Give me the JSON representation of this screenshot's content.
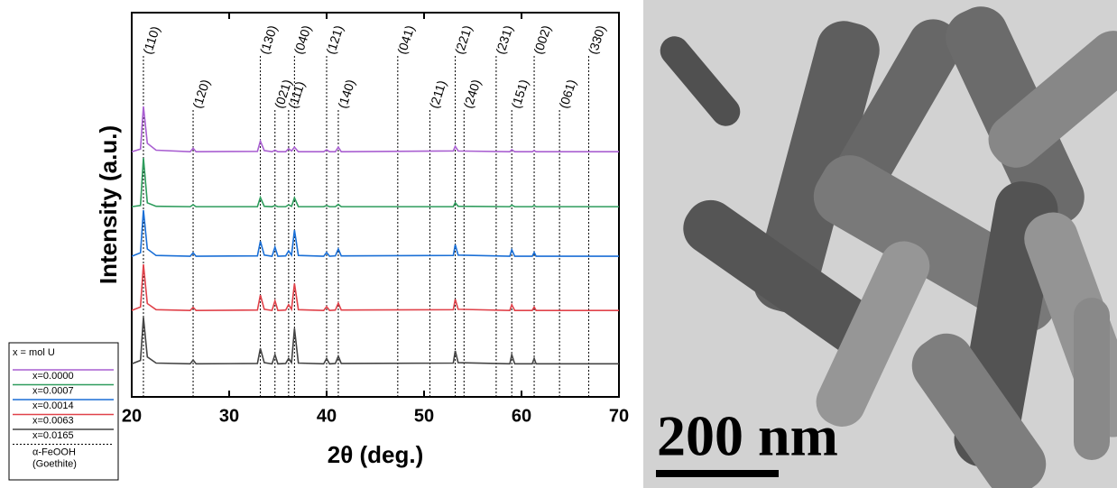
{
  "chart_data": {
    "type": "line",
    "x_label": "2θ (deg.)",
    "y_label": "Intensity (a.u.)",
    "xlim": [
      20,
      70
    ],
    "xticks": [
      20,
      30,
      40,
      50,
      60,
      70
    ],
    "ylim": [
      0,
      100
    ],
    "x": [
      20,
      20.9,
      21.2,
      21.6,
      22.5,
      26.0,
      26.3,
      26.6,
      32.9,
      33.2,
      33.6,
      34.4,
      34.7,
      35.0,
      35.8,
      36.1,
      36.4,
      36.7,
      37.1,
      39.7,
      40.0,
      40.3,
      40.9,
      41.2,
      41.5,
      53.0,
      53.2,
      53.5,
      58.8,
      59.0,
      59.3,
      61.1,
      61.3,
      61.5,
      70
    ],
    "series": [
      {
        "name": "x=0.0000",
        "color": "#a95fd1",
        "values": [
          63.8,
          64.5,
          75.6,
          66,
          64.2,
          63.8,
          64.7,
          63.8,
          63.9,
          66.6,
          64.1,
          63.8,
          64.2,
          63.8,
          63.8,
          64.6,
          64,
          65,
          63.8,
          63.8,
          64.3,
          63.8,
          63.8,
          65,
          63.8,
          64,
          65.2,
          64,
          63.8,
          64.3,
          63.8,
          63.8,
          64.1,
          63.8,
          63.8
        ]
      },
      {
        "name": "x=0.0007",
        "color": "#2e9c5c",
        "values": [
          49.5,
          49.8,
          62.2,
          50.5,
          49.6,
          49.5,
          50,
          49.5,
          49.5,
          51.9,
          49.6,
          49.5,
          49.8,
          49.5,
          49.5,
          50,
          49.6,
          51.8,
          49.5,
          49.5,
          49.8,
          49.5,
          49.5,
          50.1,
          49.5,
          49.5,
          50.5,
          49.6,
          49.5,
          49.9,
          49.5,
          49.5,
          49.8,
          49.5,
          49.5
        ]
      },
      {
        "name": "x=0.0014",
        "color": "#1a6fd6",
        "values": [
          36.6,
          37.5,
          48.6,
          38.5,
          36.8,
          36.6,
          37.5,
          36.6,
          36.7,
          40.5,
          36.9,
          36.6,
          39,
          36.6,
          36.7,
          38,
          36.9,
          43.4,
          36.8,
          36.6,
          37.6,
          36.6,
          36.7,
          38.5,
          36.7,
          36.8,
          39.6,
          36.9,
          36.6,
          38.3,
          36.6,
          36.6,
          37.6,
          36.6,
          36.6
        ]
      },
      {
        "name": "x=0.0063",
        "color": "#e0424a",
        "values": [
          22.5,
          23.4,
          34.5,
          24.3,
          22.7,
          22.5,
          23.3,
          22.5,
          22.6,
          26.5,
          22.8,
          22.5,
          25,
          22.5,
          22.6,
          24,
          22.8,
          29.5,
          22.7,
          22.5,
          23.5,
          22.5,
          22.6,
          24.4,
          22.6,
          22.7,
          25.4,
          22.8,
          22.5,
          24,
          22.5,
          22.5,
          23.4,
          22.5,
          22.5
        ]
      },
      {
        "name": "x=0.0165",
        "color": "#444444",
        "values": [
          8.6,
          9.5,
          20.7,
          10.4,
          8.8,
          8.6,
          9.6,
          8.6,
          8.7,
          12.6,
          8.9,
          8.6,
          11,
          8.6,
          8.7,
          10,
          8.9,
          17.8,
          8.8,
          8.6,
          10,
          8.6,
          8.7,
          10.6,
          8.7,
          8.8,
          12,
          8.9,
          8.6,
          11,
          8.6,
          8.6,
          10,
          8.6,
          8.6
        ]
      }
    ],
    "legend": {
      "title": "x = mol U",
      "position": "lower left"
    },
    "reference": {
      "name": [
        "α-FeOOH",
        "(Goethite)"
      ],
      "color": "#000000",
      "style": "dotted",
      "peaks": [
        [
          {
            "x": 21.2,
            "label": "(110)"
          },
          {
            "x": 33.2,
            "label": "(130)"
          },
          {
            "x": 36.7,
            "label": "(040)"
          },
          {
            "x": 40.0,
            "label": "(121)"
          },
          {
            "x": 47.3,
            "label": "(041)"
          },
          {
            "x": 53.2,
            "label": "(221)"
          },
          {
            "x": 57.4,
            "label": "(231)"
          },
          {
            "x": 61.3,
            "label": "(002)"
          },
          {
            "x": 66.9,
            "label": "(330)"
          }
        ],
        [
          {
            "x": 26.3,
            "label": "(120)"
          },
          {
            "x": 34.7,
            "label": "(021)"
          },
          {
            "x": 36.1,
            "label": "(111)"
          },
          {
            "x": 41.2,
            "label": "(140)"
          },
          {
            "x": 50.6,
            "label": "(211)"
          },
          {
            "x": 54.1,
            "label": "(240)"
          },
          {
            "x": 59.0,
            "label": "(151)"
          },
          {
            "x": 63.9,
            "label": "(061)"
          }
        ]
      ]
    }
  },
  "image": {
    "scale_bar": "200 nm"
  }
}
